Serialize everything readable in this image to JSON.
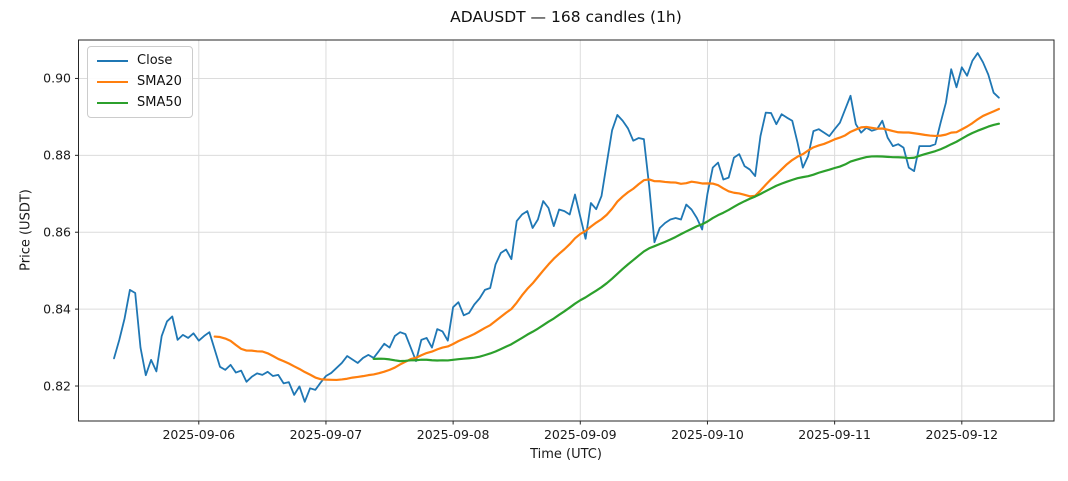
{
  "chart_data": {
    "type": "line",
    "title": "ADAUSDT — 168 candles (1h)",
    "xlabel": "Time (UTC)",
    "ylabel": "Price (USDT)",
    "symbol": "ADAUSDT",
    "timeframe": "1h",
    "candle_count": 168,
    "x_start_utc": "2025-09-05 08:00",
    "x_step_hours": 1,
    "grid": true,
    "legend_position": "upper left",
    "ylim": [
      0.8109,
      0.91
    ],
    "xlim_index": [
      -6.7,
      177.4
    ],
    "y_ticks": [
      {
        "value": 0.82,
        "label": "0.82"
      },
      {
        "value": 0.84,
        "label": "0.84"
      },
      {
        "value": 0.86,
        "label": "0.86"
      },
      {
        "value": 0.88,
        "label": "0.88"
      },
      {
        "value": 0.9,
        "label": "0.90"
      }
    ],
    "x_ticks": [
      {
        "hour_index": 16,
        "label": "2025-09-06"
      },
      {
        "hour_index": 40,
        "label": "2025-09-07"
      },
      {
        "hour_index": 64,
        "label": "2025-09-08"
      },
      {
        "hour_index": 88,
        "label": "2025-09-09"
      },
      {
        "hour_index": 112,
        "label": "2025-09-10"
      },
      {
        "hour_index": 136,
        "label": "2025-09-11"
      },
      {
        "hour_index": 160,
        "label": "2025-09-12"
      }
    ],
    "series": [
      {
        "name": "Close",
        "color": "#1f77b4",
        "line_width": 1.8,
        "values": [
          0.8272,
          0.832,
          0.8376,
          0.845,
          0.8442,
          0.83,
          0.8228,
          0.8268,
          0.8238,
          0.833,
          0.8368,
          0.8381,
          0.832,
          0.8333,
          0.8325,
          0.8337,
          0.8318,
          0.833,
          0.834,
          0.8295,
          0.825,
          0.8242,
          0.8255,
          0.8235,
          0.824,
          0.8211,
          0.8224,
          0.8233,
          0.8229,
          0.8237,
          0.8226,
          0.8229,
          0.8207,
          0.821,
          0.8177,
          0.8199,
          0.8159,
          0.8194,
          0.819,
          0.8209,
          0.8226,
          0.8234,
          0.8247,
          0.826,
          0.8278,
          0.8269,
          0.826,
          0.8273,
          0.8281,
          0.8273,
          0.8291,
          0.831,
          0.83,
          0.833,
          0.834,
          0.8335,
          0.83,
          0.8265,
          0.832,
          0.8325,
          0.83,
          0.8348,
          0.8342,
          0.8318,
          0.8405,
          0.8418,
          0.8384,
          0.839,
          0.8412,
          0.8428,
          0.845,
          0.8455,
          0.8516,
          0.8546,
          0.8555,
          0.853,
          0.8629,
          0.8646,
          0.8655,
          0.8611,
          0.8633,
          0.8681,
          0.8663,
          0.8616,
          0.8659,
          0.8655,
          0.8646,
          0.8698,
          0.864,
          0.8583,
          0.8676,
          0.866,
          0.8694,
          0.878,
          0.8865,
          0.8905,
          0.889,
          0.887,
          0.8838,
          0.8845,
          0.8842,
          0.872,
          0.8574,
          0.8611,
          0.8624,
          0.8633,
          0.8637,
          0.8633,
          0.8672,
          0.8659,
          0.8637,
          0.8607,
          0.87,
          0.8768,
          0.8781,
          0.8737,
          0.8742,
          0.8794,
          0.8803,
          0.8772,
          0.8763,
          0.8746,
          0.885,
          0.8911,
          0.891,
          0.8881,
          0.8907,
          0.8898,
          0.889,
          0.8833,
          0.8768,
          0.8798,
          0.8863,
          0.8868,
          0.8859,
          0.885,
          0.8868,
          0.8885,
          0.892,
          0.8955,
          0.8881,
          0.8859,
          0.8872,
          0.8864,
          0.8868,
          0.889,
          0.8846,
          0.8824,
          0.8829,
          0.882,
          0.8768,
          0.8759,
          0.8824,
          0.8824,
          0.8824,
          0.8829,
          0.8885,
          0.8937,
          0.9024,
          0.8977,
          0.9029,
          0.9007,
          0.9046,
          0.9066,
          0.9042,
          0.901,
          0.8963,
          0.895
        ]
      },
      {
        "name": "SMA20",
        "color": "#ff7f0e",
        "line_width": 2.2,
        "derived": "sma",
        "window": 20
      },
      {
        "name": "SMA50",
        "color": "#2ca02c",
        "line_width": 2.2,
        "derived": "sma",
        "window": 50
      }
    ],
    "colors": {
      "close": "#1f77b4",
      "sma20": "#ff7f0e",
      "sma50": "#2ca02c",
      "grid": "#dcdcdc",
      "spine": "#262626",
      "background": "#ffffff"
    }
  }
}
